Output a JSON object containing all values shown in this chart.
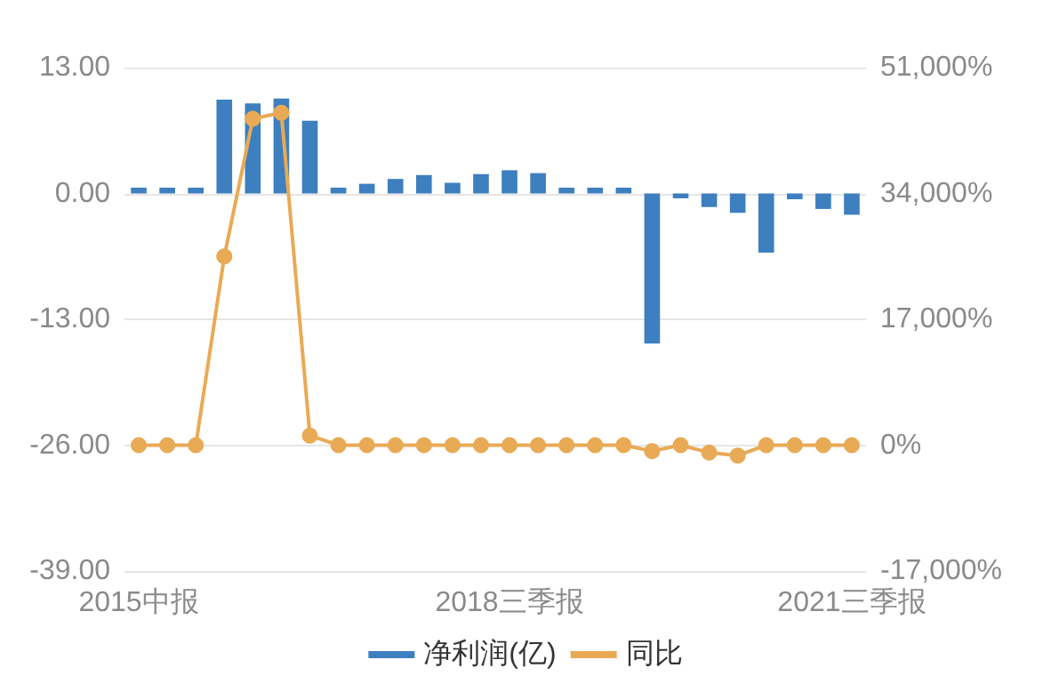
{
  "chart_data": {
    "type": "bar",
    "categories": [
      "2015中报",
      null,
      null,
      null,
      null,
      null,
      null,
      null,
      null,
      null,
      null,
      null,
      null,
      "2018三季报",
      null,
      null,
      null,
      null,
      null,
      null,
      null,
      null,
      null,
      null,
      null,
      "2021三季报"
    ],
    "series": [
      {
        "name": "净利润(亿)",
        "color": "#3d7fbf",
        "values": [
          0.6,
          0.6,
          0.6,
          9.7,
          9.3,
          9.8,
          7.5,
          0.6,
          1.0,
          1.5,
          1.9,
          1.1,
          2.0,
          2.4,
          2.1,
          0.6,
          0.6,
          0.6,
          -15.5,
          -0.5,
          -1.4,
          -2.0,
          -6.1,
          -0.6,
          -1.6,
          -2.2
        ]
      },
      {
        "name": "同比",
        "type": "line",
        "axis": "y2",
        "color": "#e9aa55",
        "marker": "circle",
        "values": [
          0,
          0,
          0,
          25500,
          44100,
          44900,
          1300,
          0,
          0,
          0,
          0,
          0,
          0,
          0,
          0,
          0,
          0,
          0,
          -800,
          0,
          -1000,
          -1400,
          0,
          0,
          0,
          0
        ]
      }
    ],
    "ylim": [
      -39,
      13
    ],
    "yticks": [
      {
        "value": -39,
        "label": "-39.00"
      },
      {
        "value": -26,
        "label": "-26.00"
      },
      {
        "value": -13,
        "label": "-13.00"
      },
      {
        "value": 0,
        "label": "0.00"
      },
      {
        "value": 13,
        "label": "13.00"
      }
    ],
    "y2lim": [
      -17000,
      51000
    ],
    "y2ticks": [
      {
        "value": -17000,
        "label": "-17,000%"
      },
      {
        "value": 0,
        "label": "0%"
      },
      {
        "value": 17000,
        "label": "17,000%"
      },
      {
        "value": 34000,
        "label": "34,000%"
      },
      {
        "value": 51000,
        "label": "51,000%"
      }
    ],
    "grid": "y",
    "legend": "bottom"
  }
}
